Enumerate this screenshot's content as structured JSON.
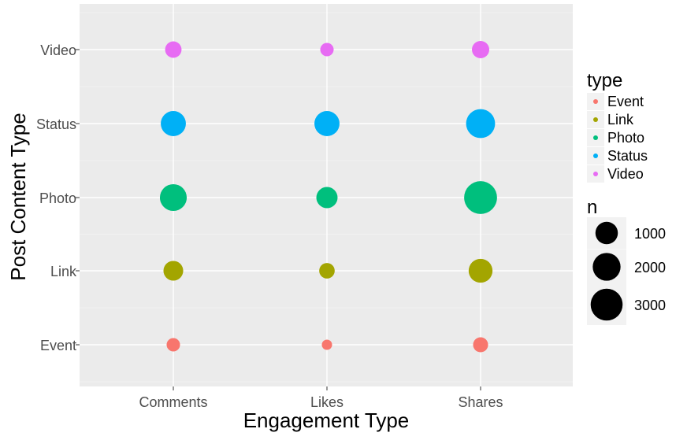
{
  "chart_data": {
    "type": "scatter",
    "title": "",
    "xlabel": "Engagement Type",
    "ylabel": "Post Content Type",
    "categories_x": [
      "Comments",
      "Likes",
      "Shares"
    ],
    "categories_y": [
      "Event",
      "Link",
      "Photo",
      "Status",
      "Video"
    ],
    "grid": true,
    "legend_position": "right",
    "series": [
      {
        "name": "Event",
        "color": "#F8766D",
        "values": [
          600,
          350,
          750
        ]
      },
      {
        "name": "Link",
        "color": "#A3A500",
        "values": [
          1300,
          800,
          1900
        ]
      },
      {
        "name": "Photo",
        "color": "#00BF7D",
        "values": [
          2400,
          1500,
          3600
        ]
      },
      {
        "name": "Status",
        "color": "#00B0F6",
        "values": [
          2100,
          2100,
          2800
        ]
      },
      {
        "name": "Video",
        "color": "#E76BF3",
        "values": [
          900,
          600,
          1000
        ]
      }
    ],
    "legend_type": {
      "title": "type",
      "items": [
        "Event",
        "Link",
        "Photo",
        "Status",
        "Video"
      ]
    },
    "legend_size": {
      "title": "n",
      "breaks": [
        1000,
        2000,
        3000
      ],
      "labels": [
        "1000",
        "2000",
        "3000"
      ]
    }
  }
}
